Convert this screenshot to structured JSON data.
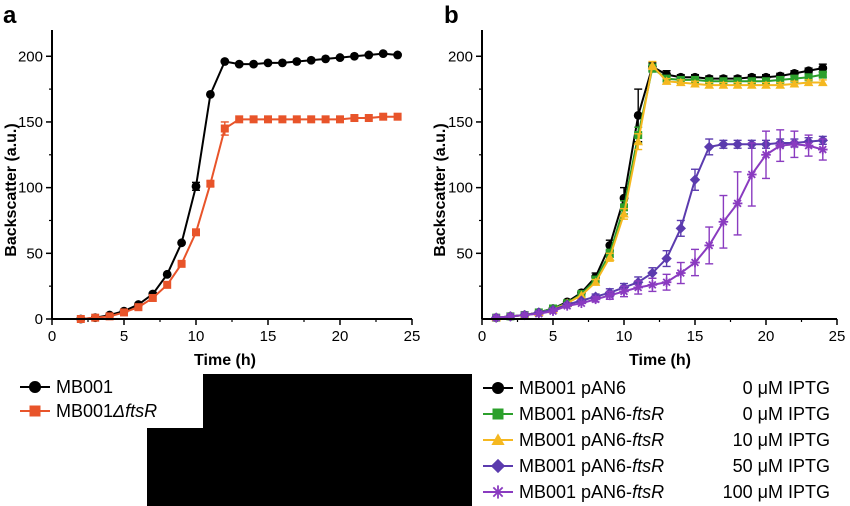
{
  "chart_data": [
    {
      "type": "line",
      "panel_label": "a",
      "xlabel": "Time (h)",
      "ylabel": "Backscatter (a.u.)",
      "xlim": [
        0,
        25
      ],
      "ylim": [
        0,
        220
      ],
      "xticks": [
        "0",
        "5",
        "10",
        "15",
        "20",
        "25"
      ],
      "yticks": [
        "0",
        "50",
        "100",
        "150",
        "200"
      ],
      "grid": false,
      "legend_position": "below-left",
      "series": [
        {
          "name": "MB001",
          "color": "#000000",
          "marker": "circle",
          "x": [
            2,
            3,
            4,
            5,
            6,
            7,
            8,
            9,
            10,
            11,
            12,
            13,
            14,
            15,
            16,
            17,
            18,
            19,
            20,
            21,
            22,
            23,
            24
          ],
          "y": [
            0,
            1,
            3,
            6,
            11,
            19,
            34,
            58,
            101,
            171,
            196,
            194,
            194,
            195,
            195,
            196,
            197,
            198,
            199,
            200,
            201,
            202,
            201
          ],
          "err": [
            0,
            0,
            0,
            0,
            0,
            0,
            0,
            0,
            3,
            0,
            0,
            0,
            0,
            0,
            0,
            0,
            0,
            0,
            0,
            0,
            0,
            0,
            0
          ]
        },
        {
          "name_prefix": "MB001",
          "name_suffix": "ΔftsR",
          "color": "#E8542A",
          "marker": "square",
          "x": [
            2,
            3,
            4,
            5,
            6,
            7,
            8,
            9,
            10,
            11,
            12,
            13,
            14,
            15,
            16,
            17,
            18,
            19,
            20,
            21,
            22,
            23,
            24
          ],
          "y": [
            0,
            1,
            2,
            5,
            9,
            16,
            26,
            42,
            66,
            103,
            145,
            152,
            152,
            152,
            152,
            152,
            152,
            152,
            152,
            153,
            153,
            154,
            154
          ],
          "err": [
            0,
            0,
            0,
            0,
            0,
            0,
            0,
            0,
            0,
            2,
            5,
            0,
            0,
            0,
            0,
            0,
            0,
            0,
            0,
            0,
            0,
            0,
            0
          ]
        }
      ]
    },
    {
      "type": "line",
      "panel_label": "b",
      "xlabel": "Time (h)",
      "ylabel": "Backscatter (a.u.)",
      "xlim": [
        0,
        25
      ],
      "ylim": [
        0,
        220
      ],
      "xticks": [
        "0",
        "5",
        "10",
        "15",
        "20",
        "25"
      ],
      "yticks": [
        "50",
        "100",
        "150",
        "200"
      ],
      "grid": false,
      "legend_position": "below-right",
      "series": [
        {
          "name_prefix": "MB001 pAN6",
          "name_suffix": "",
          "conc": "0 μM IPTG",
          "color": "#000000",
          "marker": "circle",
          "x": [
            1,
            2,
            3,
            4,
            5,
            6,
            7,
            8,
            9,
            10,
            11,
            12,
            13,
            14,
            15,
            16,
            17,
            18,
            19,
            20,
            21,
            22,
            23,
            24
          ],
          "y": [
            1,
            2,
            3,
            5,
            8,
            13,
            20,
            32,
            56,
            92,
            155,
            192,
            186,
            184,
            184,
            183,
            183,
            183,
            184,
            184,
            185,
            187,
            189,
            191
          ],
          "err": [
            0,
            0,
            0,
            0,
            0,
            0,
            0,
            3,
            4,
            8,
            20,
            3,
            3,
            2,
            2,
            2,
            2,
            2,
            2,
            2,
            2,
            2,
            2,
            3
          ]
        },
        {
          "name_prefix": "MB001 pAN6-",
          "name_suffix": "ftsR",
          "conc": "0 μM IPTG",
          "color": "#2CA02C",
          "marker": "square",
          "x": [
            1,
            2,
            3,
            4,
            5,
            6,
            7,
            8,
            9,
            10,
            11,
            12,
            13,
            14,
            15,
            16,
            17,
            18,
            19,
            20,
            21,
            22,
            23,
            24
          ],
          "y": [
            1,
            2,
            3,
            5,
            8,
            12,
            19,
            30,
            50,
            85,
            140,
            191,
            183,
            182,
            182,
            181,
            181,
            181,
            181,
            181,
            182,
            183,
            184,
            186
          ],
          "err": [
            0,
            0,
            0,
            0,
            0,
            0,
            0,
            2,
            3,
            5,
            6,
            3,
            2,
            2,
            2,
            2,
            2,
            2,
            2,
            2,
            2,
            2,
            2,
            2
          ]
        },
        {
          "name_prefix": "MB001 pAN6-",
          "name_suffix": "ftsR",
          "conc": "10 μM IPTG",
          "color": "#F5B820",
          "marker": "triangle",
          "x": [
            1,
            2,
            3,
            4,
            5,
            6,
            7,
            8,
            9,
            10,
            11,
            12,
            13,
            14,
            15,
            16,
            17,
            18,
            19,
            20,
            21,
            22,
            23,
            24
          ],
          "y": [
            1,
            2,
            3,
            5,
            7,
            12,
            18,
            28,
            47,
            80,
            135,
            193,
            181,
            180,
            179,
            178,
            178,
            178,
            178,
            178,
            178,
            179,
            180,
            180
          ],
          "err": [
            0,
            0,
            0,
            0,
            0,
            0,
            0,
            2,
            3,
            4,
            6,
            3,
            2,
            2,
            2,
            2,
            2,
            2,
            2,
            2,
            2,
            2,
            2,
            2
          ]
        },
        {
          "name_prefix": "MB001 pAN6-",
          "name_suffix": "ftsR",
          "conc": "50 μM IPTG",
          "color": "#5B3BAE",
          "marker": "diamond",
          "x": [
            1,
            2,
            3,
            4,
            5,
            6,
            7,
            8,
            9,
            10,
            11,
            12,
            13,
            14,
            15,
            16,
            17,
            18,
            19,
            20,
            21,
            22,
            23,
            24
          ],
          "y": [
            1,
            2,
            3,
            5,
            7,
            11,
            14,
            17,
            20,
            24,
            28,
            35,
            46,
            69,
            106,
            131,
            133,
            133,
            133,
            133,
            134,
            134,
            135,
            136
          ],
          "err": [
            0,
            0,
            0,
            0,
            0,
            0,
            0,
            2,
            3,
            3,
            4,
            4,
            6,
            6,
            8,
            6,
            3,
            3,
            3,
            3,
            3,
            3,
            3,
            3
          ]
        },
        {
          "name_prefix": "MB001 pAN6-",
          "name_suffix": "ftsR",
          "conc": "100 μM IPTG",
          "color": "#8A3BC0",
          "marker": "star",
          "x": [
            1,
            2,
            3,
            4,
            5,
            6,
            7,
            8,
            9,
            10,
            11,
            12,
            13,
            14,
            15,
            16,
            17,
            18,
            19,
            20,
            21,
            22,
            23,
            24
          ],
          "y": [
            1,
            2,
            3,
            4,
            6,
            10,
            12,
            15,
            18,
            21,
            24,
            26,
            28,
            35,
            43,
            56,
            74,
            88,
            110,
            125,
            132,
            133,
            132,
            129
          ],
          "err": [
            0,
            0,
            0,
            0,
            0,
            0,
            0,
            2,
            3,
            4,
            5,
            5,
            6,
            8,
            10,
            14,
            20,
            24,
            24,
            18,
            12,
            10,
            8,
            8
          ]
        }
      ]
    }
  ]
}
